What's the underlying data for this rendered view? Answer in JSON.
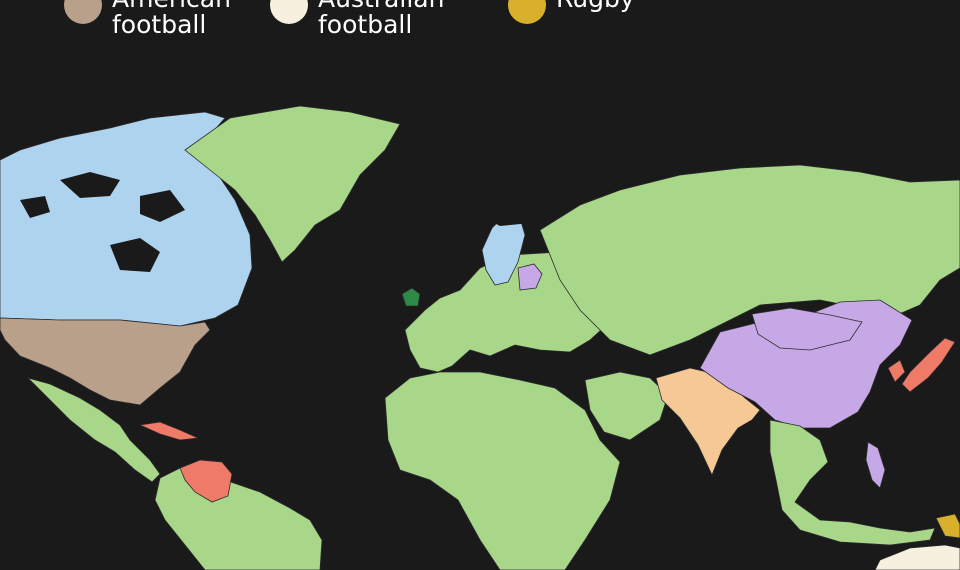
{
  "legend": [
    {
      "line1": "American",
      "line2": "football",
      "color": "#b8a08a"
    },
    {
      "line1": "Australian",
      "line2": "football",
      "color": "#f6f1de"
    },
    {
      "line1": "Rugby",
      "line2": "",
      "color": "#d8b02c"
    }
  ],
  "sports_colors": {
    "soccer": "#a8d78a",
    "ice_hockey": "#aed3ee",
    "american_football": "#b8a08a",
    "baseball": "#ef7a68",
    "cricket": "#f5c896",
    "table_tennis": "#c7a8e6",
    "basketball": "#c7a8e6",
    "gaelic_games": "#2e8b47",
    "australian_football": "#f6f1de",
    "rugby": "#d8b02c",
    "background": "#1a1a1a"
  },
  "regions": [
    {
      "name": "Canada",
      "sport": "ice_hockey"
    },
    {
      "name": "United States",
      "sport": "american_football"
    },
    {
      "name": "Greenland",
      "sport": "soccer"
    },
    {
      "name": "Mexico & Central America",
      "sport": "soccer"
    },
    {
      "name": "South America",
      "sport": "soccer"
    },
    {
      "name": "Venezuela",
      "sport": "baseball"
    },
    {
      "name": "Cuba & Dominican Republic",
      "sport": "baseball"
    },
    {
      "name": "Europe",
      "sport": "soccer"
    },
    {
      "name": "Sweden & Finland",
      "sport": "ice_hockey"
    },
    {
      "name": "Ireland",
      "sport": "gaelic_games"
    },
    {
      "name": "Latvia & Lithuania",
      "sport": "basketball"
    },
    {
      "name": "Russia & Central Asia",
      "sport": "soccer"
    },
    {
      "name": "Africa",
      "sport": "soccer"
    },
    {
      "name": "Middle East",
      "sport": "soccer"
    },
    {
      "name": "South Asia",
      "sport": "cricket"
    },
    {
      "name": "China",
      "sport": "table_tennis"
    },
    {
      "name": "Mongolia",
      "sport": "basketball"
    },
    {
      "name": "Japan & Korea",
      "sport": "baseball"
    },
    {
      "name": "Southeast Asia",
      "sport": "soccer"
    },
    {
      "name": "Philippines",
      "sport": "basketball"
    },
    {
      "name": "Australia",
      "sport": "australian_football"
    },
    {
      "name": "Papua New Guinea",
      "sport": "rugby"
    }
  ]
}
